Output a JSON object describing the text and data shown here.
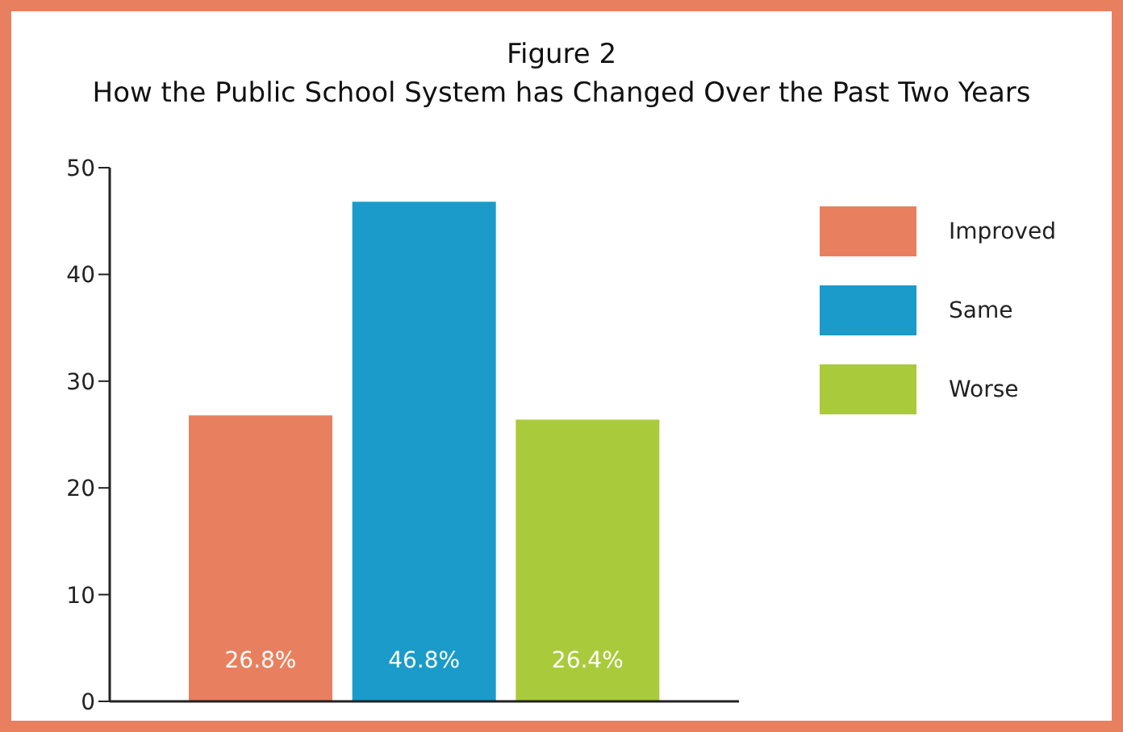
{
  "chart_data": {
    "type": "bar",
    "title": "Figure 2",
    "subtitle": "How the Public School System has Changed Over the Past Two Years",
    "categories": [
      null,
      null,
      null
    ],
    "stacked": true,
    "series": [
      {
        "name": "Improved",
        "color": "#e8805f",
        "values": [
          26.8,
          null,
          null
        ],
        "value_labels": [
          "26.8%",
          null,
          null
        ]
      },
      {
        "name": "Same",
        "color": "#1a9bca",
        "values": [
          null,
          46.8,
          null
        ],
        "value_labels": [
          null,
          "46.8%",
          null
        ]
      },
      {
        "name": "Worse",
        "color": "#a9cb3b",
        "values": [
          null,
          null,
          26.4
        ],
        "value_labels": [
          null,
          null,
          "26.4%"
        ]
      }
    ],
    "ylim": [
      0,
      50
    ],
    "yticks": [
      0,
      10,
      20,
      30,
      40,
      50
    ],
    "grid": false,
    "legend": "right"
  }
}
